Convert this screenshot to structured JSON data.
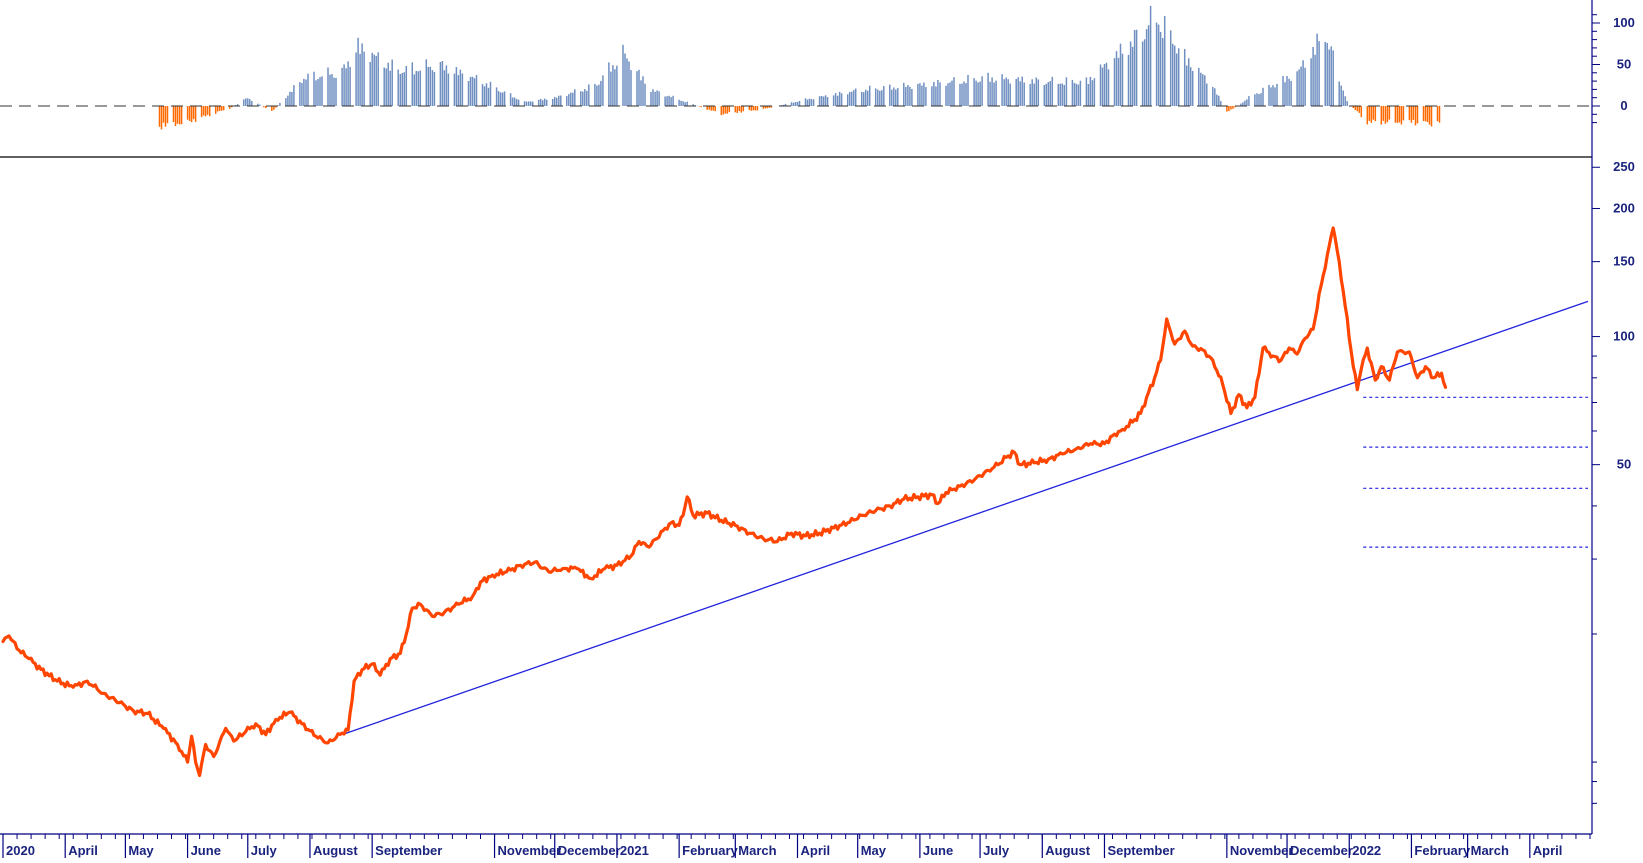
{
  "colors": {
    "price": "#ff4500",
    "trendline": "#2222dd",
    "hist_positive": "#6f8fc0",
    "hist_negative": "#ff6a00",
    "axis": "#000080",
    "support": "#2222dd"
  },
  "chart_data": [
    {
      "type": "bar",
      "panel": "oscillator",
      "title": "",
      "ylabel": "",
      "ylim": [
        -30,
        110
      ],
      "yticks": [
        100,
        50,
        0
      ],
      "zero_line": "dashed",
      "description_series": [
        {
          "x": "2020-05-18",
          "value": -25
        },
        {
          "x": "2020-06-01",
          "value": -20
        },
        {
          "x": "2020-06-22",
          "value": -3
        },
        {
          "x": "2020-07-01",
          "value": 10
        },
        {
          "x": "2020-07-13",
          "value": -7
        },
        {
          "x": "2020-07-29",
          "value": 35
        },
        {
          "x": "2020-08-17",
          "value": 42
        },
        {
          "x": "2020-08-25",
          "value": 73
        },
        {
          "x": "2020-09-14",
          "value": 44
        },
        {
          "x": "2020-10-05",
          "value": 50
        },
        {
          "x": "2020-10-26",
          "value": 30
        },
        {
          "x": "2020-11-16",
          "value": 5
        },
        {
          "x": "2020-12-01",
          "value": 10
        },
        {
          "x": "2020-12-21",
          "value": 25
        },
        {
          "x": "2021-01-04",
          "value": 65
        },
        {
          "x": "2021-01-18",
          "value": 20
        },
        {
          "x": "2021-02-08",
          "value": 2
        },
        {
          "x": "2021-02-22",
          "value": -10
        },
        {
          "x": "2021-03-15",
          "value": -4
        },
        {
          "x": "2021-04-05",
          "value": 8
        },
        {
          "x": "2021-05-03",
          "value": 20
        },
        {
          "x": "2021-06-07",
          "value": 27
        },
        {
          "x": "2021-07-05",
          "value": 35
        },
        {
          "x": "2021-08-02",
          "value": 30
        },
        {
          "x": "2021-08-23",
          "value": 30
        },
        {
          "x": "2021-09-13",
          "value": 75
        },
        {
          "x": "2021-09-27",
          "value": 110
        },
        {
          "x": "2021-10-11",
          "value": 60
        },
        {
          "x": "2021-10-25",
          "value": 25
        },
        {
          "x": "2021-11-01",
          "value": -8
        },
        {
          "x": "2021-11-15",
          "value": 15
        },
        {
          "x": "2021-12-06",
          "value": 40
        },
        {
          "x": "2021-12-20",
          "value": 90
        },
        {
          "x": "2021-12-31",
          "value": 5
        },
        {
          "x": "2022-01-10",
          "value": -20
        },
        {
          "x": "2022-02-01",
          "value": -20
        },
        {
          "x": "2022-02-15",
          "value": -22
        }
      ]
    },
    {
      "type": "line",
      "panel": "price",
      "title": "",
      "xlabel": "",
      "ylabel": "",
      "yscale": "log",
      "ylim": [
        7,
        260
      ],
      "yticks": [
        250,
        200,
        150,
        100,
        50
      ],
      "series": [
        {
          "points": [
            [
              "2020-03-01",
              19.2
            ],
            [
              "2020-03-04",
              19.8
            ],
            [
              "2020-03-09",
              18.3
            ],
            [
              "2020-03-14",
              17.5
            ],
            [
              "2020-03-20",
              16.5
            ],
            [
              "2020-03-28",
              15.5
            ],
            [
              "2020-04-05",
              15.0
            ],
            [
              "2020-04-12",
              15.5
            ],
            [
              "2020-04-20",
              14.5
            ],
            [
              "2020-04-28",
              13.8
            ],
            [
              "2020-05-05",
              13.2
            ],
            [
              "2020-05-12",
              13.0
            ],
            [
              "2020-05-20",
              12.0
            ],
            [
              "2020-05-27",
              11.0
            ],
            [
              "2020-06-01",
              10.0
            ],
            [
              "2020-06-03",
              11.5
            ],
            [
              "2020-06-05",
              10.0
            ],
            [
              "2020-06-07",
              9.3
            ],
            [
              "2020-06-10",
              11.0
            ],
            [
              "2020-06-14",
              10.3
            ],
            [
              "2020-06-20",
              12.0
            ],
            [
              "2020-06-24",
              11.2
            ],
            [
              "2020-06-30",
              11.8
            ],
            [
              "2020-07-05",
              12.3
            ],
            [
              "2020-07-10",
              11.6
            ],
            [
              "2020-07-15",
              12.6
            ],
            [
              "2020-07-22",
              13.1
            ],
            [
              "2020-07-28",
              12.3
            ],
            [
              "2020-08-04",
              11.5
            ],
            [
              "2020-08-10",
              11.1
            ],
            [
              "2020-08-17",
              11.7
            ],
            [
              "2020-08-20",
              11.9
            ],
            [
              "2020-08-23",
              15.5
            ],
            [
              "2020-08-27",
              16.5
            ],
            [
              "2020-09-01",
              17.0
            ],
            [
              "2020-09-05",
              16.0
            ],
            [
              "2020-09-10",
              17.5
            ],
            [
              "2020-09-15",
              18.0
            ],
            [
              "2020-09-18",
              20.0
            ],
            [
              "2020-09-21",
              23.0
            ],
            [
              "2020-09-25",
              23.5
            ],
            [
              "2020-10-01",
              22.0
            ],
            [
              "2020-10-07",
              22.5
            ],
            [
              "2020-10-14",
              23.5
            ],
            [
              "2020-10-21",
              24.5
            ],
            [
              "2020-10-25",
              26.5
            ],
            [
              "2020-10-31",
              27.5
            ],
            [
              "2020-11-07",
              28.0
            ],
            [
              "2020-11-14",
              29.0
            ],
            [
              "2020-11-21",
              29.5
            ],
            [
              "2020-11-28",
              28.0
            ],
            [
              "2020-12-05",
              28.5
            ],
            [
              "2020-12-12",
              28.5
            ],
            [
              "2020-12-19",
              27.0
            ],
            [
              "2020-12-26",
              28.5
            ],
            [
              "2021-01-01",
              29.0
            ],
            [
              "2021-01-08",
              30.5
            ],
            [
              "2021-01-12",
              33.0
            ],
            [
              "2021-01-17",
              32.0
            ],
            [
              "2021-01-24",
              35.0
            ],
            [
              "2021-01-28",
              36.5
            ],
            [
              "2021-02-01",
              36.0
            ],
            [
              "2021-02-03",
              38.0
            ],
            [
              "2021-02-05",
              42.0
            ],
            [
              "2021-02-08",
              38.0
            ],
            [
              "2021-02-15",
              38.5
            ],
            [
              "2021-02-22",
              37.0
            ],
            [
              "2021-03-01",
              36.0
            ],
            [
              "2021-03-08",
              34.5
            ],
            [
              "2021-03-15",
              33.5
            ],
            [
              "2021-03-22",
              33.0
            ],
            [
              "2021-03-29",
              34.5
            ],
            [
              "2021-04-05",
              34.0
            ],
            [
              "2021-04-12",
              34.5
            ],
            [
              "2021-04-19",
              35.5
            ],
            [
              "2021-04-26",
              36.5
            ],
            [
              "2021-05-03",
              38.0
            ],
            [
              "2021-05-10",
              39.0
            ],
            [
              "2021-05-17",
              40.0
            ],
            [
              "2021-05-24",
              41.5
            ],
            [
              "2021-05-31",
              42.0
            ],
            [
              "2021-06-07",
              42.5
            ],
            [
              "2021-06-10",
              40.5
            ],
            [
              "2021-06-14",
              43.0
            ],
            [
              "2021-06-21",
              44.5
            ],
            [
              "2021-06-28",
              46.0
            ],
            [
              "2021-07-05",
              48.5
            ],
            [
              "2021-07-10",
              50.0
            ],
            [
              "2021-07-14",
              52.0
            ],
            [
              "2021-07-18",
              53.5
            ],
            [
              "2021-07-21",
              50.0
            ],
            [
              "2021-07-28",
              50.5
            ],
            [
              "2021-08-04",
              51.5
            ],
            [
              "2021-08-11",
              53.0
            ],
            [
              "2021-08-18",
              54.5
            ],
            [
              "2021-08-25",
              56.0
            ],
            [
              "2021-09-01",
              56.0
            ],
            [
              "2021-09-06",
              59.0
            ],
            [
              "2021-09-10",
              60.5
            ],
            [
              "2021-09-15",
              63.0
            ],
            [
              "2021-09-19",
              66.0
            ],
            [
              "2021-09-22",
              72.0
            ],
            [
              "2021-09-26",
              80.0
            ],
            [
              "2021-09-29",
              88.0
            ],
            [
              "2021-10-02",
              110.0
            ],
            [
              "2021-10-06",
              96.0
            ],
            [
              "2021-10-11",
              103.0
            ],
            [
              "2021-10-15",
              95.0
            ],
            [
              "2021-10-20",
              93.0
            ],
            [
              "2021-10-25",
              88.0
            ],
            [
              "2021-10-30",
              77.0
            ],
            [
              "2021-11-03",
              66.0
            ],
            [
              "2021-11-07",
              73.0
            ],
            [
              "2021-11-11",
              68.0
            ],
            [
              "2021-11-15",
              72.0
            ],
            [
              "2021-11-19",
              94.0
            ],
            [
              "2021-11-24",
              90.0
            ],
            [
              "2021-11-28",
              88.0
            ],
            [
              "2021-12-02",
              94.0
            ],
            [
              "2021-12-06",
              91.0
            ],
            [
              "2021-12-10",
              99.0
            ],
            [
              "2021-12-14",
              104.0
            ],
            [
              "2021-12-18",
              132.0
            ],
            [
              "2021-12-21",
              155.0
            ],
            [
              "2021-12-24",
              180.0
            ],
            [
              "2021-12-27",
              150.0
            ],
            [
              "2021-12-30",
              118.0
            ],
            [
              "2022-01-03",
              85.0
            ],
            [
              "2022-01-05",
              75.0
            ],
            [
              "2022-01-07",
              84.0
            ],
            [
              "2022-01-10",
              94.0
            ],
            [
              "2022-01-14",
              79.0
            ],
            [
              "2022-01-17",
              85.0
            ],
            [
              "2022-01-21",
              79.0
            ],
            [
              "2022-01-25",
              92.0
            ],
            [
              "2022-01-31",
              92.0
            ],
            [
              "2022-02-04",
              80.0
            ],
            [
              "2022-02-08",
              85.0
            ],
            [
              "2022-02-12",
              80.0
            ],
            [
              "2022-02-16",
              82.0
            ],
            [
              "2022-02-18",
              76.0
            ]
          ]
        }
      ],
      "trendline": {
        "from": [
          "2020-08-17",
          11.6
        ],
        "to": [
          "2022-04-30",
          121.0
        ]
      },
      "support_levels": [
        72,
        55,
        44,
        32
      ]
    }
  ],
  "x_axis": {
    "labels": [
      {
        "text": "2020",
        "date": "2020-03-01"
      },
      {
        "text": "April",
        "date": "2020-04-01"
      },
      {
        "text": "May",
        "date": "2020-05-01"
      },
      {
        "text": "June",
        "date": "2020-06-01"
      },
      {
        "text": "July",
        "date": "2020-07-01"
      },
      {
        "text": "August",
        "date": "2020-08-01"
      },
      {
        "text": "September",
        "date": "2020-09-01"
      },
      {
        "text": "November",
        "date": "2020-11-01"
      },
      {
        "text": "December",
        "date": "2020-12-01"
      },
      {
        "text": "2021",
        "date": "2021-01-01"
      },
      {
        "text": "February",
        "date": "2021-02-01"
      },
      {
        "text": "March",
        "date": "2021-03-01"
      },
      {
        "text": "April",
        "date": "2021-04-01"
      },
      {
        "text": "May",
        "date": "2021-05-01"
      },
      {
        "text": "June",
        "date": "2021-06-01"
      },
      {
        "text": "July",
        "date": "2021-07-01"
      },
      {
        "text": "August",
        "date": "2021-08-01"
      },
      {
        "text": "September",
        "date": "2021-09-01"
      },
      {
        "text": "November",
        "date": "2021-11-01"
      },
      {
        "text": "December",
        "date": "2021-12-01"
      },
      {
        "text": "2022",
        "date": "2022-01-01"
      },
      {
        "text": "February",
        "date": "2022-02-01"
      },
      {
        "text": "March",
        "date": "2022-03-01"
      },
      {
        "text": "April",
        "date": "2022-04-01"
      }
    ]
  }
}
